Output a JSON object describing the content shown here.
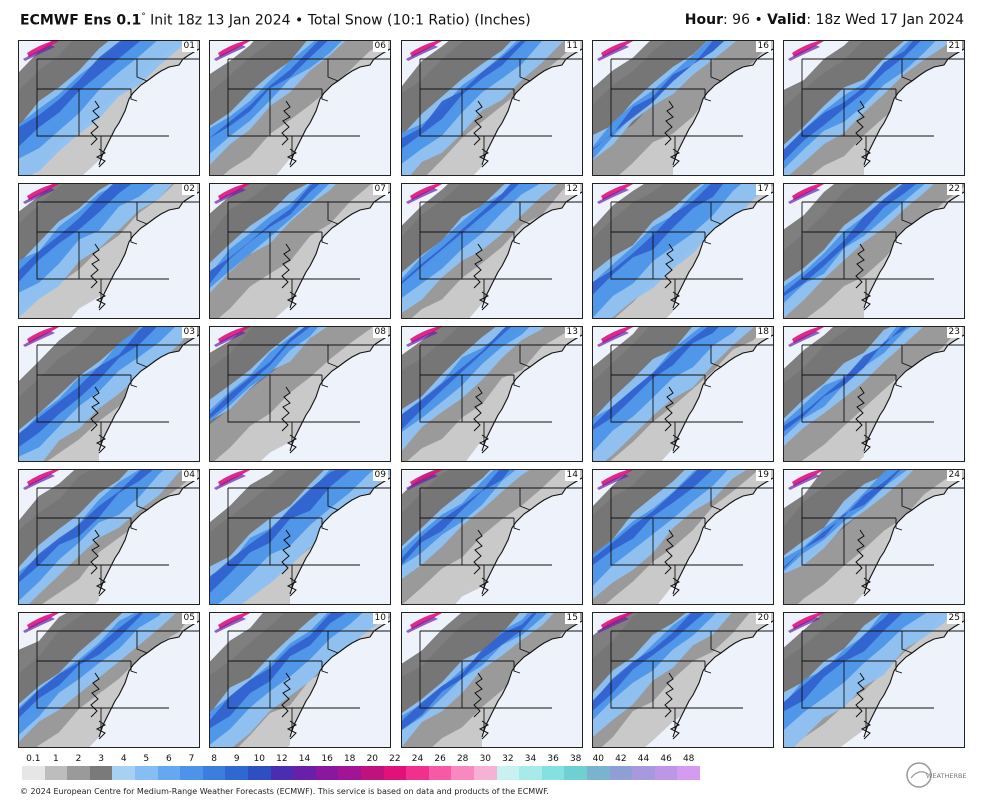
{
  "header": {
    "model": "ECMWF Ens 0.1",
    "deg": "°",
    "init": "Init 18z 13 Jan 2024",
    "product": "Total Snow (10:1 Ratio) (Inches)",
    "hour_label": "Hour",
    "hour_value": ": 96",
    "valid_label": "Valid",
    "valid_value": ": 18z Wed 17 Jan 2024"
  },
  "members": [
    "01",
    "02",
    "03",
    "04",
    "05",
    "06",
    "07",
    "08",
    "09",
    "10",
    "11",
    "12",
    "13",
    "14",
    "15",
    "16",
    "17",
    "18",
    "19",
    "20",
    "21",
    "22",
    "23",
    "24",
    "25"
  ],
  "colorbar": {
    "ticks": [
      "0.1",
      "1",
      "2",
      "3",
      "4",
      "5",
      "6",
      "7",
      "8",
      "9",
      "10",
      "12",
      "14",
      "16",
      "18",
      "20",
      "22",
      "24",
      "26",
      "28",
      "30",
      "32",
      "34",
      "36",
      "38",
      "40",
      "42",
      "44",
      "46",
      "48"
    ],
    "colors": [
      "#e6e6e6",
      "#bdbdbd",
      "#9a9a9a",
      "#7a7a7a",
      "#a7d0f5",
      "#86bdf2",
      "#65a8ef",
      "#4d93e8",
      "#3b7ee0",
      "#3068d2",
      "#2e4fc2",
      "#4a2db0",
      "#6a1fa8",
      "#8a189f",
      "#a21496",
      "#c0127f",
      "#e0117a",
      "#f0308c",
      "#f65aa6",
      "#f888c0",
      "#f7b1d5",
      "#c8f2f2",
      "#a6eaea",
      "#85e0e0",
      "#6fcfd2",
      "#7ab3cf",
      "#8f9fd6",
      "#a898de",
      "#be96e6",
      "#d49bf0"
    ]
  },
  "footer": "© 2024 European Centre for Medium-Range Weather Forecasts (ECMWF). This service is based on data and products of the ECMWF.",
  "logo_text": "WEATHERBELL",
  "legend_colors": {
    "gray_light": "#c9c9c9",
    "gray_mid": "#9a9a9a",
    "gray_dark": "#727272",
    "blue_light": "#8fc2f3",
    "blue_mid": "#4d93e8",
    "blue_dark": "#2f5fcc",
    "purple": "#6a1fa8",
    "magenta": "#e0117a",
    "ocean": "#eef2fb"
  }
}
